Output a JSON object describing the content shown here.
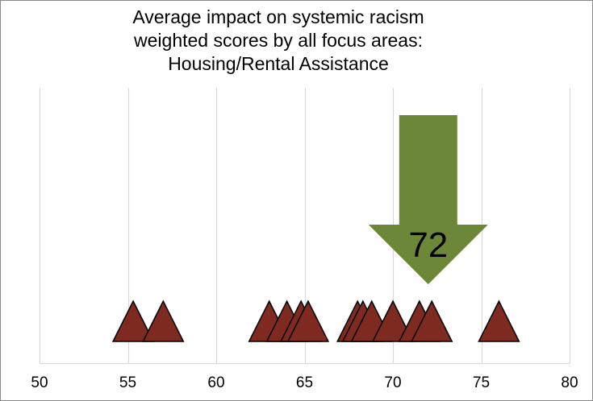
{
  "chart_data": {
    "type": "scatter",
    "title_lines": [
      "Average impact on systemic racism",
      "weighted scores by all focus areas:",
      "Housing/Rental Assistance"
    ],
    "xlabel": "",
    "ylabel": "",
    "xlim": [
      50,
      80
    ],
    "x_ticks": [
      50,
      55,
      60,
      65,
      70,
      75,
      80
    ],
    "x_tick_labels": [
      "50",
      "55",
      "60",
      "65",
      "70",
      "75",
      "80"
    ],
    "grid": "vertical",
    "marker": "triangle",
    "marker_color": "#7f2a20",
    "points": [
      55.3,
      57.0,
      63.0,
      64.0,
      64.8,
      65.2,
      68.0,
      68.3,
      68.8,
      70.0,
      71.5,
      72.2,
      76.0
    ],
    "average": {
      "value": 72,
      "label": "72",
      "marker": "down-arrow",
      "color": "#6d8739"
    }
  }
}
